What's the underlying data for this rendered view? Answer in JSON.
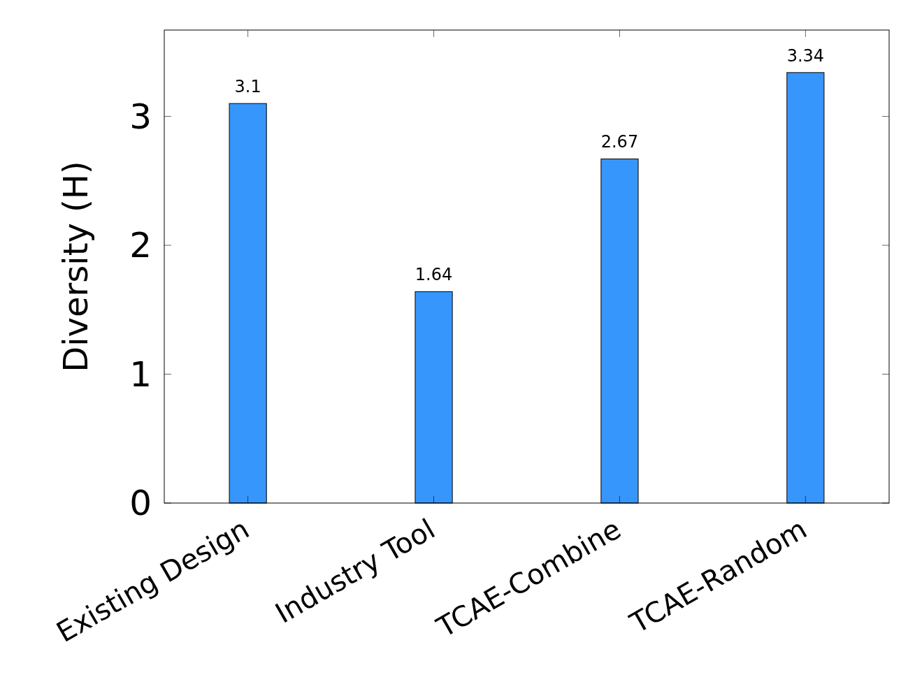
{
  "chart_data": {
    "type": "bar",
    "ylabel": "Diversity (H)",
    "categories": [
      "Existing Design",
      "Industry Tool",
      "TCAE-Combine",
      "TCAE-Random"
    ],
    "values": [
      3.1,
      1.64,
      2.67,
      3.34
    ],
    "color": "#3796fb",
    "ylim": [
      0,
      3.67
    ],
    "yticks": [
      0,
      1,
      2,
      3
    ],
    "data_labels": true,
    "grid": false
  }
}
